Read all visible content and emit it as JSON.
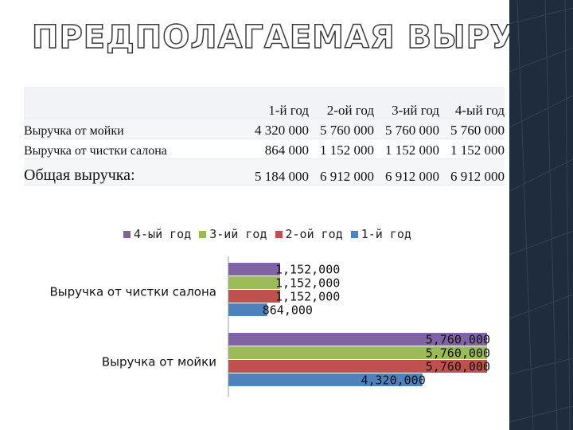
{
  "slide": {
    "title": "ПРЕДПОЛАГАЕМАЯ ВЫРУЧКА"
  },
  "table": {
    "headers": [
      "1-й год",
      "2-ой год",
      "3-ий год",
      "4-ый год"
    ],
    "rows": [
      {
        "label": "Выручка от мойки",
        "values": [
          "4 320 000",
          "5 760 000",
          "5 760 000",
          "5 760 000"
        ]
      },
      {
        "label": "Выручка от чистки салона",
        "values": [
          "864 000",
          "1 152 000",
          "1 152 000",
          "1 152 000"
        ]
      },
      {
        "label": "Общая выручка:",
        "values": [
          "5 184 000",
          "6 912 000",
          "6 912 000",
          "6 912 000"
        ]
      }
    ]
  },
  "colors": {
    "y1": "#4f81bd",
    "y2": "#c0504d",
    "y3": "#9bbb59",
    "y4": "#8064a2",
    "sidebar": "#1e2c3d"
  },
  "chart_data": {
    "type": "bar",
    "orientation": "horizontal",
    "categories": [
      "Выручка от мойки",
      "Выручка от чистки салона"
    ],
    "series": [
      {
        "name": "1-й год",
        "values": [
          4320000,
          864000
        ],
        "labels": [
          "4,320,000",
          "864,000"
        ]
      },
      {
        "name": "2-ой год",
        "values": [
          5760000,
          1152000
        ],
        "labels": [
          "5,760,000",
          "1,152,000"
        ]
      },
      {
        "name": "3-ий год",
        "values": [
          5760000,
          1152000
        ],
        "labels": [
          "5,760,000",
          "1,152,000"
        ]
      },
      {
        "name": "4-ый год",
        "values": [
          5760000,
          1152000
        ],
        "labels": [
          "5,760,000",
          "1,152,000"
        ]
      }
    ],
    "legend": {
      "position": "top",
      "order": [
        "4-ый год",
        "3-ий год",
        "2-ой год",
        "1-й год"
      ]
    },
    "xlim": [
      0,
      5760000
    ],
    "axis_visible": false,
    "grid": false
  }
}
